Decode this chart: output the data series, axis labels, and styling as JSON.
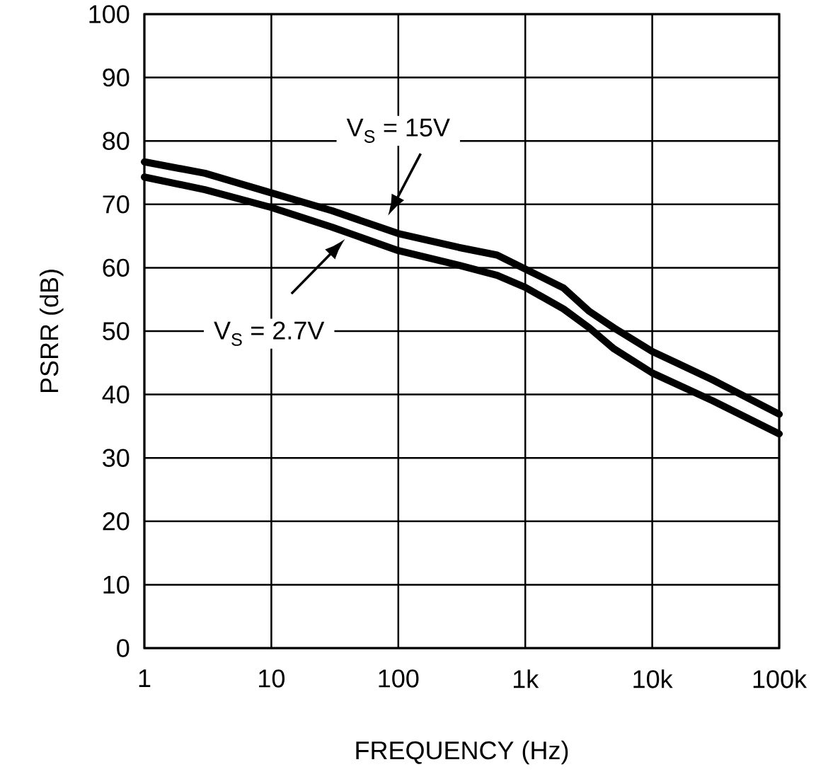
{
  "chart_data": {
    "type": "line",
    "xlabel": "FREQUENCY (Hz)",
    "ylabel": "PSRR (dB)",
    "log": "x",
    "grid": true,
    "xlim": [
      1,
      100000
    ],
    "ylim": [
      0,
      100
    ],
    "xticks": [
      1,
      10,
      100,
      {
        "value": 1000,
        "label": "1k"
      },
      {
        "value": 10000,
        "label": "10k"
      },
      {
        "value": 100000,
        "label": "100k"
      }
    ],
    "yticks": [
      0,
      10,
      20,
      30,
      40,
      50,
      60,
      70,
      80,
      90,
      100
    ],
    "x": [
      1,
      3,
      10,
      30,
      100,
      300,
      600,
      1000,
      2000,
      3200,
      5000,
      10000,
      30000,
      100000
    ],
    "series": [
      {
        "name": "V$_{S}$ = 15V",
        "color": "#000000",
        "values": [
          76.7,
          74.9,
          71.8,
          69.0,
          65.4,
          63.2,
          62.0,
          59.8,
          56.8,
          53.1,
          50.5,
          46.8,
          42.3,
          36.9
        ]
      },
      {
        "name": "V$_{S}$ = 2.7V",
        "color": "#000000",
        "values": [
          74.3,
          72.3,
          69.5,
          66.4,
          62.7,
          60.4,
          58.8,
          56.9,
          53.5,
          50.5,
          47.2,
          43.4,
          39.0,
          33.8
        ]
      }
    ]
  }
}
